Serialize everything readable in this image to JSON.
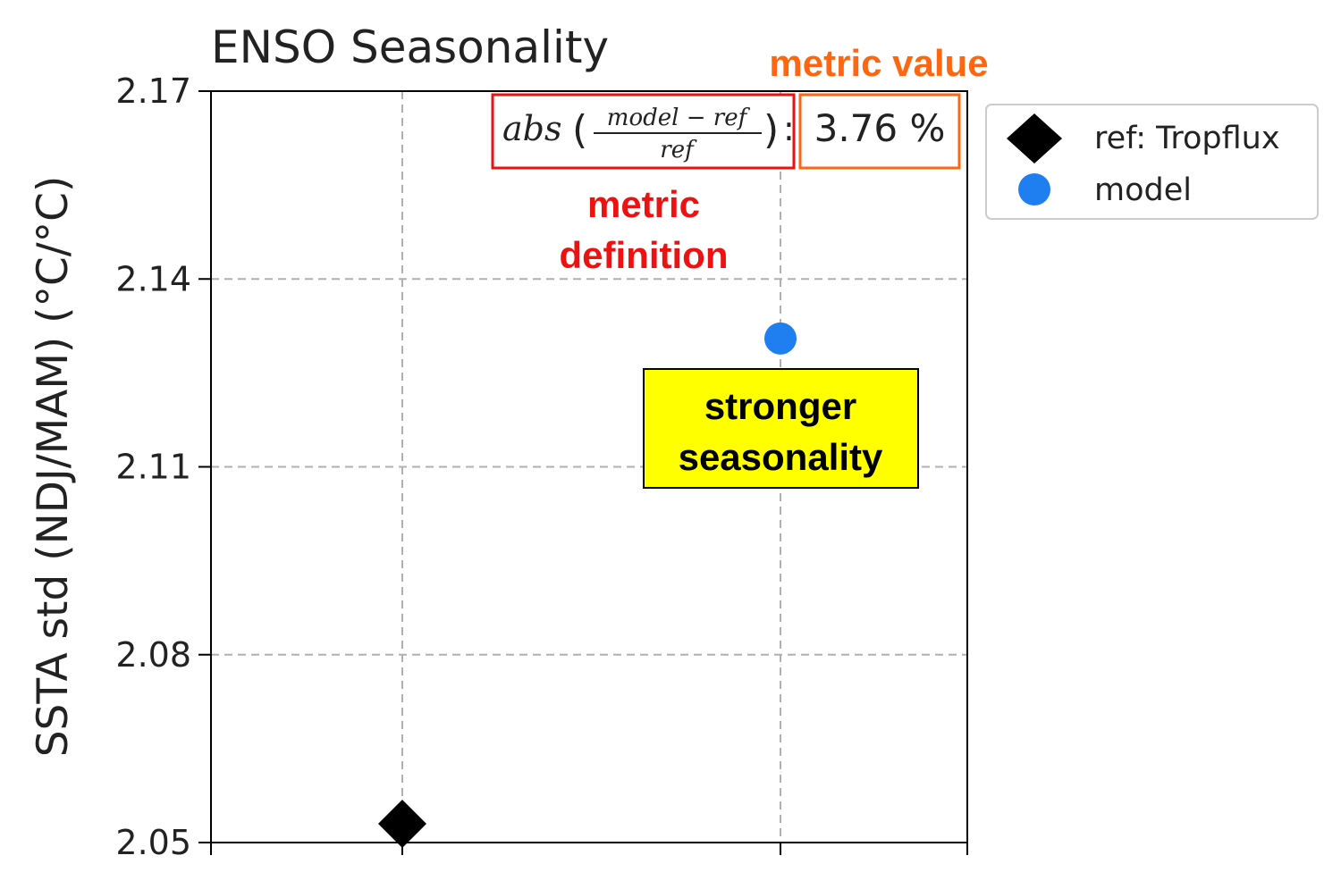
{
  "chart_data": {
    "type": "scatter",
    "title": "ENSO Seasonality",
    "ylabel": "SSTA std (NDJ/MAM) (°C/°C)",
    "ylim": [
      2.05,
      2.17
    ],
    "yticks": [
      "2.05",
      "2.08",
      "2.11",
      "2.14",
      "2.17"
    ],
    "ytick_values": [
      2.05,
      2.08,
      2.11,
      2.14,
      2.17
    ],
    "grid": true,
    "legend_position": "upper-right-outside",
    "series": [
      {
        "name": "ref: Tropflux",
        "marker": "diamond",
        "color": "#000000",
        "x": 0,
        "y": 2.053
      },
      {
        "name": "model",
        "marker": "circle",
        "color": "#1f7ff0",
        "x": 1,
        "y": 2.1305
      }
    ],
    "metric": {
      "definition_prefix": "abs",
      "numerator": "model − ref",
      "denominator": "ref",
      "value": "3.76 %"
    }
  },
  "annotations": {
    "metric_value_label": "metric value",
    "metric_definition_line1": "metric",
    "metric_definition_line2": "definition",
    "seasonality_line1": "stronger",
    "seasonality_line2": "seasonality"
  },
  "colors": {
    "definition_box": "#ee1111",
    "value_box": "#ff6611",
    "callout_fill": "#ffff00"
  }
}
